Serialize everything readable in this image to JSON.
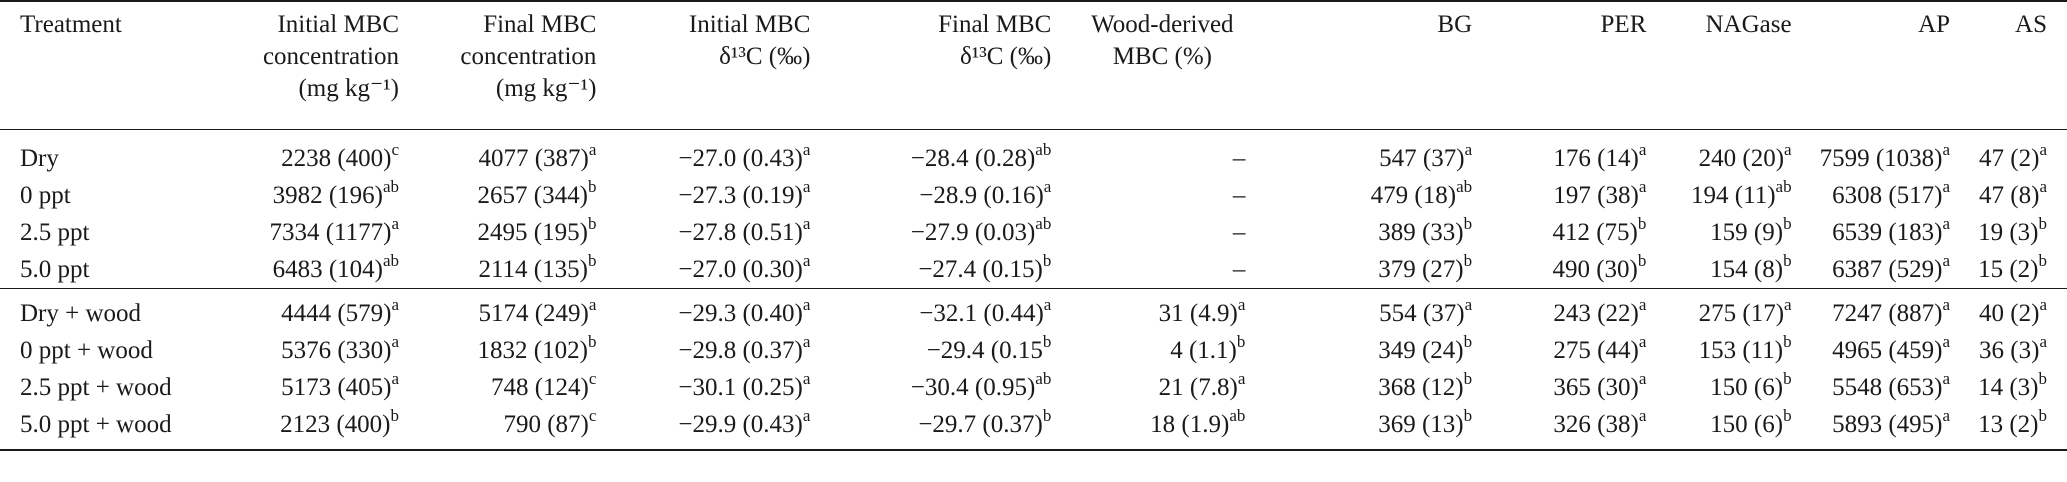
{
  "columns": [
    {
      "lines": [
        "Treatment"
      ]
    },
    {
      "lines": [
        "Initial MBC",
        "concentration",
        "(mg kg⁻¹)"
      ]
    },
    {
      "lines": [
        "Final MBC",
        "concentration",
        "(mg kg⁻¹)"
      ]
    },
    {
      "lines": [
        "Initial MBC",
        "δ¹³C (‰)"
      ]
    },
    {
      "lines": [
        "Final MBC",
        "δ¹³C (‰)"
      ]
    },
    {
      "lines": [
        "Wood-derived",
        "MBC (%)"
      ]
    },
    {
      "lines": [
        "BG"
      ]
    },
    {
      "lines": [
        "PER"
      ]
    },
    {
      "lines": [
        "NAGase"
      ]
    },
    {
      "lines": [
        "AP"
      ]
    },
    {
      "lines": [
        "AS"
      ]
    }
  ],
  "rows": [
    {
      "cells": [
        {
          "v": "Dry"
        },
        {
          "v": "2238 (400)",
          "s": "c"
        },
        {
          "v": "4077 (387)",
          "s": "a"
        },
        {
          "v": "−27.0 (0.43)",
          "s": "a"
        },
        {
          "v": "−28.4 (0.28)",
          "s": "ab"
        },
        {
          "v": "–"
        },
        {
          "v": "547 (37)",
          "s": "a"
        },
        {
          "v": "176 (14)",
          "s": "a"
        },
        {
          "v": "240 (20)",
          "s": "a"
        },
        {
          "v": "7599 (1038)",
          "s": "a"
        },
        {
          "v": "47 (2)",
          "s": "a"
        }
      ]
    },
    {
      "cells": [
        {
          "v": "0 ppt"
        },
        {
          "v": "3982 (196)",
          "s": "ab"
        },
        {
          "v": "2657 (344)",
          "s": "b"
        },
        {
          "v": "−27.3 (0.19)",
          "s": "a"
        },
        {
          "v": "−28.9 (0.16)",
          "s": "a"
        },
        {
          "v": "–"
        },
        {
          "v": "479 (18)",
          "s": "ab"
        },
        {
          "v": "197 (38)",
          "s": "a"
        },
        {
          "v": "194 (11)",
          "s": "ab"
        },
        {
          "v": "6308 (517)",
          "s": "a"
        },
        {
          "v": "47 (8)",
          "s": "a"
        }
      ]
    },
    {
      "cells": [
        {
          "v": "2.5 ppt"
        },
        {
          "v": "7334 (1177)",
          "s": "a"
        },
        {
          "v": "2495 (195)",
          "s": "b"
        },
        {
          "v": "−27.8 (0.51)",
          "s": "a"
        },
        {
          "v": "−27.9 (0.03)",
          "s": "ab"
        },
        {
          "v": "–"
        },
        {
          "v": "389 (33)",
          "s": "b"
        },
        {
          "v": "412 (75)",
          "s": "b"
        },
        {
          "v": "159 (9)",
          "s": "b"
        },
        {
          "v": "6539 (183)",
          "s": "a"
        },
        {
          "v": "19 (3)",
          "s": "b"
        }
      ]
    },
    {
      "cells": [
        {
          "v": "5.0 ppt"
        },
        {
          "v": "6483 (104)",
          "s": "ab"
        },
        {
          "v": "2114 (135)",
          "s": "b"
        },
        {
          "v": "−27.0 (0.30)",
          "s": "a"
        },
        {
          "v": "−27.4 (0.15)",
          "s": "b"
        },
        {
          "v": "–"
        },
        {
          "v": "379 (27)",
          "s": "b"
        },
        {
          "v": "490 (30)",
          "s": "b"
        },
        {
          "v": "154 (8)",
          "s": "b"
        },
        {
          "v": "6387 (529)",
          "s": "a"
        },
        {
          "v": "15 (2)",
          "s": "b"
        }
      ]
    },
    {
      "cells": [
        {
          "v": "Dry + wood"
        },
        {
          "v": "4444 (579)",
          "s": "a"
        },
        {
          "v": "5174 (249)",
          "s": "a"
        },
        {
          "v": "−29.3 (0.40)",
          "s": "a"
        },
        {
          "v": "−32.1 (0.44)",
          "s": "a"
        },
        {
          "v": "31 (4.9)",
          "s": "a"
        },
        {
          "v": "554 (37)",
          "s": "a"
        },
        {
          "v": "243 (22)",
          "s": "a"
        },
        {
          "v": "275 (17)",
          "s": "a"
        },
        {
          "v": "7247 (887)",
          "s": "a"
        },
        {
          "v": "40 (2)",
          "s": "a"
        }
      ]
    },
    {
      "cells": [
        {
          "v": "0 ppt + wood"
        },
        {
          "v": "5376 (330)",
          "s": "a"
        },
        {
          "v": "1832 (102)",
          "s": "b"
        },
        {
          "v": "−29.8 (0.37)",
          "s": "a"
        },
        {
          "v": "−29.4 (0.15",
          "s": "b"
        },
        {
          "v": "4 (1.1)",
          "s": "b"
        },
        {
          "v": "349 (24)",
          "s": "b"
        },
        {
          "v": "275 (44)",
          "s": "a"
        },
        {
          "v": "153 (11)",
          "s": "b"
        },
        {
          "v": "4965 (459)",
          "s": "a"
        },
        {
          "v": "36 (3)",
          "s": "a"
        }
      ]
    },
    {
      "cells": [
        {
          "v": "2.5 ppt + wood"
        },
        {
          "v": "5173 (405)",
          "s": "a"
        },
        {
          "v": "748 (124)",
          "s": "c"
        },
        {
          "v": "−30.1 (0.25)",
          "s": "a"
        },
        {
          "v": "−30.4 (0.95)",
          "s": "ab"
        },
        {
          "v": "21 (7.8)",
          "s": "a"
        },
        {
          "v": "368 (12)",
          "s": "b"
        },
        {
          "v": "365 (30)",
          "s": "a"
        },
        {
          "v": "150 (6)",
          "s": "b"
        },
        {
          "v": "5548 (653)",
          "s": "a"
        },
        {
          "v": "14 (3)",
          "s": "b"
        }
      ]
    },
    {
      "cells": [
        {
          "v": "5.0 ppt + wood"
        },
        {
          "v": "2123 (400)",
          "s": "b"
        },
        {
          "v": "790 (87)",
          "s": "c"
        },
        {
          "v": "−29.9 (0.43)",
          "s": "a"
        },
        {
          "v": "−29.7 (0.37)",
          "s": "b"
        },
        {
          "v": "18 (1.9)",
          "s": "ab"
        },
        {
          "v": "369 (13)",
          "s": "b"
        },
        {
          "v": "326 (38)",
          "s": "a"
        },
        {
          "v": "150 (6)",
          "s": "b"
        },
        {
          "v": "5893 (495)",
          "s": "a"
        },
        {
          "v": "13 (2)",
          "s": "b"
        }
      ]
    }
  ]
}
